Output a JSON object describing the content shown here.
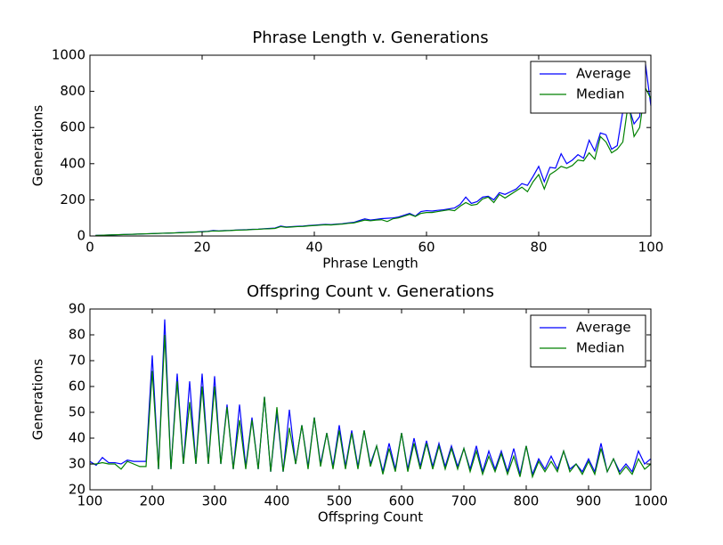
{
  "chart_data": [
    {
      "type": "line",
      "title": "Phrase Length v. Generations",
      "xlabel": "Phrase Length",
      "ylabel": "Generations",
      "x": [
        1,
        2,
        3,
        4,
        5,
        6,
        7,
        8,
        9,
        10,
        11,
        12,
        13,
        14,
        15,
        16,
        17,
        18,
        19,
        20,
        21,
        22,
        23,
        24,
        25,
        26,
        27,
        28,
        29,
        30,
        31,
        32,
        33,
        34,
        35,
        36,
        37,
        38,
        39,
        40,
        41,
        42,
        43,
        44,
        45,
        46,
        47,
        48,
        49,
        50,
        51,
        52,
        53,
        54,
        55,
        56,
        57,
        58,
        59,
        60,
        61,
        62,
        63,
        64,
        65,
        66,
        67,
        68,
        69,
        70,
        71,
        72,
        73,
        74,
        75,
        76,
        77,
        78,
        79,
        80,
        81,
        82,
        83,
        84,
        85,
        86,
        87,
        88,
        89,
        90,
        91,
        92,
        93,
        94,
        95,
        96,
        97,
        98,
        99,
        100
      ],
      "series": [
        {
          "name": "Average",
          "color": "#0000ff",
          "values": [
            3,
            4,
            5,
            6,
            7,
            8,
            9,
            10,
            11,
            12,
            13,
            14,
            15,
            16,
            17,
            19,
            20,
            21,
            22,
            24,
            26,
            30,
            28,
            30,
            31,
            33,
            34,
            35,
            37,
            38,
            40,
            42,
            44,
            55,
            50,
            52,
            54,
            55,
            58,
            60,
            62,
            64,
            63,
            66,
            68,
            72,
            75,
            85,
            95,
            88,
            92,
            96,
            98,
            100,
            105,
            115,
            125,
            110,
            135,
            140,
            138,
            142,
            145,
            150,
            155,
            175,
            215,
            180,
            190,
            215,
            220,
            200,
            240,
            230,
            245,
            260,
            290,
            280,
            330,
            385,
            300,
            380,
            375,
            455,
            400,
            420,
            450,
            430,
            530,
            470,
            570,
            560,
            480,
            500,
            690,
            720,
            620,
            660,
            960,
            720
          ]
        },
        {
          "name": "Median",
          "color": "#008000",
          "values": [
            3,
            4,
            5,
            6,
            7,
            8,
            9,
            10,
            11,
            12,
            13,
            14,
            15,
            16,
            17,
            18,
            19,
            21,
            22,
            23,
            25,
            28,
            27,
            29,
            30,
            32,
            33,
            34,
            36,
            37,
            39,
            40,
            42,
            52,
            48,
            50,
            52,
            53,
            56,
            58,
            60,
            62,
            61,
            64,
            66,
            70,
            72,
            80,
            88,
            84,
            88,
            90,
            80,
            95,
            100,
            110,
            120,
            108,
            125,
            130,
            130,
            135,
            140,
            145,
            140,
            165,
            185,
            170,
            175,
            205,
            215,
            185,
            230,
            210,
            230,
            250,
            270,
            245,
            300,
            340,
            260,
            340,
            360,
            385,
            375,
            390,
            420,
            415,
            460,
            425,
            550,
            520,
            460,
            480,
            520,
            740,
            550,
            600,
            820,
            760
          ]
        }
      ],
      "xlim": [
        0,
        100
      ],
      "xticks": [
        0,
        20,
        40,
        60,
        80,
        100
      ],
      "ylim": [
        0,
        1000
      ],
      "yticks": [
        0,
        200,
        400,
        600,
        800,
        1000
      ],
      "legend": "upper right"
    },
    {
      "type": "line",
      "title": "Offspring Count v. Generations",
      "xlabel": "Offspring Count",
      "ylabel": "Generations",
      "x": [
        100,
        110,
        120,
        130,
        140,
        150,
        160,
        170,
        180,
        190,
        200,
        210,
        220,
        230,
        240,
        250,
        260,
        270,
        280,
        290,
        300,
        310,
        320,
        330,
        340,
        350,
        360,
        370,
        380,
        390,
        400,
        410,
        420,
        430,
        440,
        450,
        460,
        470,
        480,
        490,
        500,
        510,
        520,
        530,
        540,
        550,
        560,
        570,
        580,
        590,
        600,
        610,
        620,
        630,
        640,
        650,
        660,
        670,
        680,
        690,
        700,
        710,
        720,
        730,
        740,
        750,
        760,
        770,
        780,
        790,
        800,
        810,
        820,
        830,
        840,
        850,
        860,
        870,
        880,
        890,
        900,
        910,
        920,
        930,
        940,
        950,
        960,
        970,
        980,
        990,
        1000
      ],
      "series": [
        {
          "name": "Average",
          "color": "#0000ff",
          "values": [
            31,
            29.5,
            32.5,
            30.5,
            30.5,
            30,
            31.5,
            31,
            31,
            31,
            72,
            28,
            86,
            28,
            65,
            30,
            62,
            30,
            65,
            30,
            64,
            30,
            53,
            28,
            53,
            29,
            48,
            28,
            56,
            27,
            50,
            27,
            51,
            30,
            45,
            29,
            48,
            30,
            42,
            29,
            45,
            29,
            43,
            29,
            43,
            30,
            37,
            27,
            38,
            28,
            42,
            28,
            40,
            29,
            39,
            29,
            38,
            29,
            37,
            29,
            36,
            28,
            37,
            27,
            35,
            28,
            35,
            27,
            36,
            26,
            37,
            26,
            32,
            28,
            33,
            28,
            35,
            28,
            30,
            27,
            32,
            27,
            38,
            27,
            32,
            27,
            30,
            27,
            35,
            30,
            32
          ]
        },
        {
          "name": "Median",
          "color": "#008000",
          "values": [
            30,
            30,
            30.5,
            30,
            30,
            28,
            31,
            30,
            29,
            29,
            66,
            28,
            80,
            28,
            62,
            30,
            54,
            30,
            60,
            30,
            60,
            30,
            52,
            28,
            47,
            28,
            47,
            28,
            56,
            27,
            52,
            27,
            44,
            30,
            45,
            28,
            48,
            29,
            42,
            28,
            43,
            28,
            42,
            28,
            43,
            29,
            37,
            26,
            36,
            27,
            42,
            27,
            38,
            28,
            38,
            28,
            37,
            28,
            36,
            28,
            36,
            27,
            35,
            26,
            33,
            27,
            34,
            26,
            33,
            25,
            37,
            25,
            31,
            27,
            31,
            27,
            35,
            27,
            30,
            26,
            31,
            26,
            36,
            27,
            32,
            26,
            29,
            26,
            32,
            28,
            30
          ]
        }
      ],
      "xlim": [
        100,
        1000
      ],
      "xticks": [
        100,
        200,
        300,
        400,
        500,
        600,
        700,
        800,
        900,
        1000
      ],
      "ylim": [
        20,
        90
      ],
      "yticks": [
        20,
        30,
        40,
        50,
        60,
        70,
        80,
        90
      ],
      "legend": "upper right"
    }
  ]
}
